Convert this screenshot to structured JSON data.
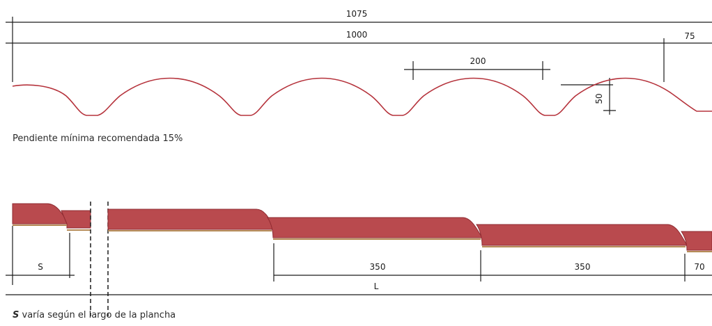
{
  "top_profile": {
    "dim_total": "1075",
    "dim_width": "1000",
    "dim_overlap": "75",
    "dim_pitch": "200",
    "dim_height": "50",
    "caption": "Pendiente mínima recomendada 15%"
  },
  "side_profile": {
    "dim_s": "S",
    "dim_step_1": "350",
    "dim_step_2": "350",
    "dim_end": "70",
    "dim_length": "L",
    "caption_strong": "S",
    "caption_rest": " varía según el largo de la plancha"
  },
  "colors": {
    "sheet_fill": "#b94a4e",
    "sheet_stroke": "#8e2a30",
    "profile_stroke": "#b5323b",
    "underlay": "#b58a55",
    "line": "#1a1a1a"
  }
}
